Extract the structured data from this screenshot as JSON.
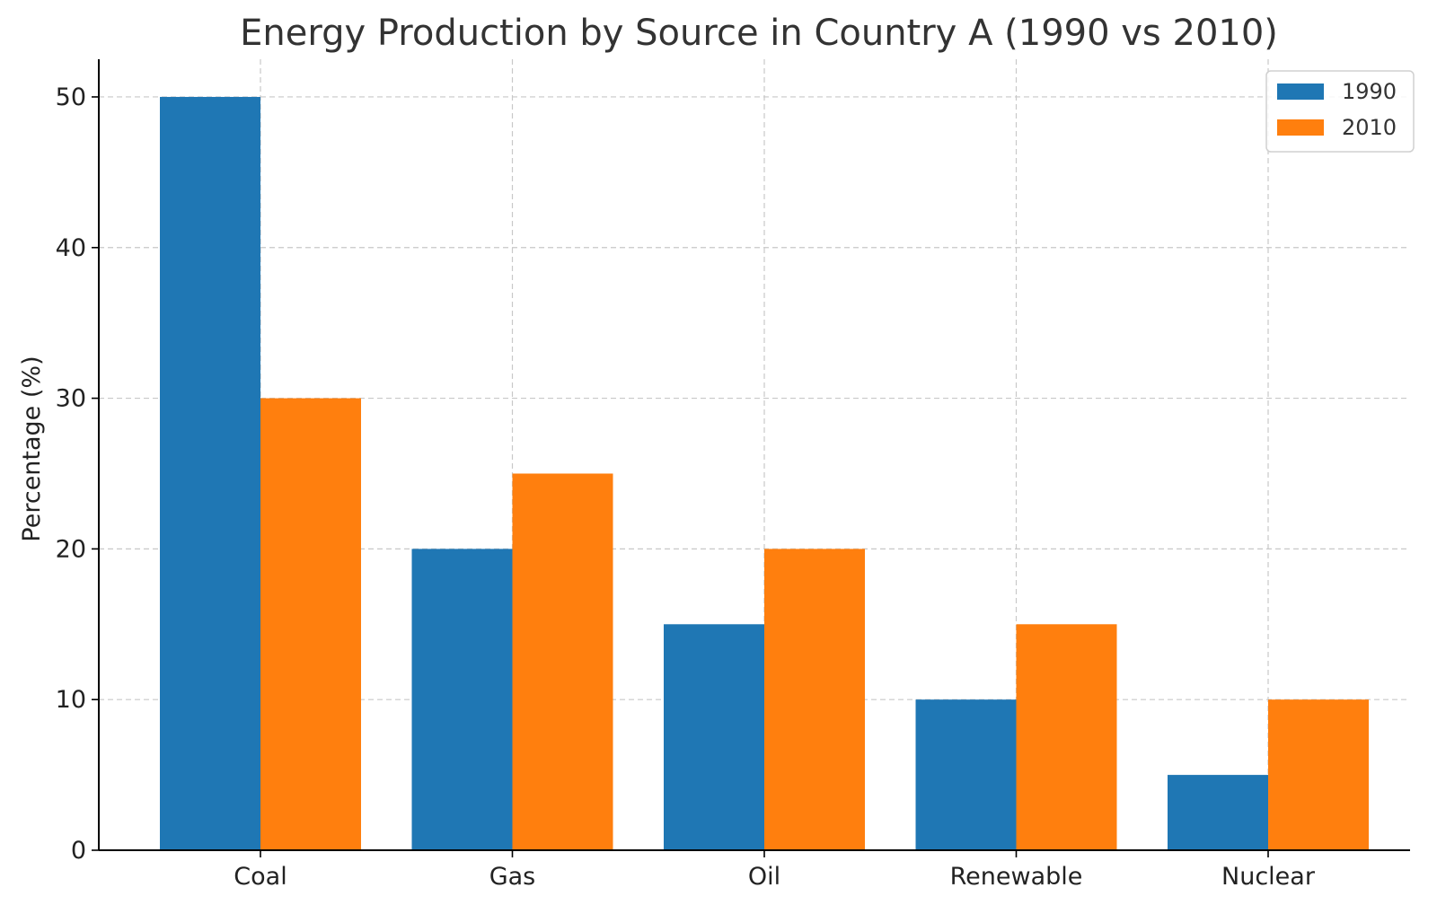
{
  "chart_data": {
    "type": "bar",
    "title": "Energy Production by Source in Country A (1990 vs 2010)",
    "xlabel": "",
    "ylabel": "Percentage (%)",
    "categories": [
      "Coal",
      "Gas",
      "Oil",
      "Renewable",
      "Nuclear"
    ],
    "series": [
      {
        "name": "1990",
        "values": [
          50,
          20,
          15,
          10,
          5
        ],
        "color": "#1f77b4"
      },
      {
        "name": "2010",
        "values": [
          30,
          25,
          20,
          15,
          10
        ],
        "color": "#ff7f0e"
      }
    ],
    "ylim": [
      0,
      52.5
    ],
    "yticks": [
      0,
      10,
      20,
      30,
      40,
      50
    ],
    "grid": true,
    "legend": "top-right"
  }
}
